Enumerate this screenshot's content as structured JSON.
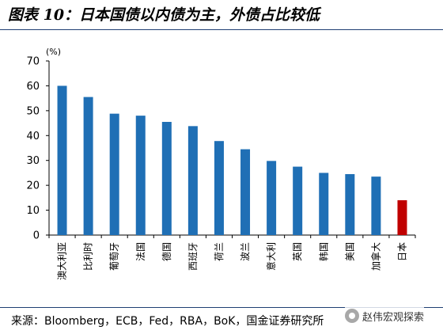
{
  "title": "图表 10：日本国债以内债为主，外债占比较低",
  "source": "来源：Bloomberg，ECB，Fed，RBA，BoK，国金证券研究所",
  "watermark": "赵伟宏观探索",
  "colors": {
    "bar": "#1f6fb5",
    "highlight": "#c00000",
    "axis": "#000000",
    "rule": "#1f3f73"
  },
  "chart_data": {
    "type": "bar",
    "unit_label": "(%)",
    "categories": [
      "澳大利亚",
      "比利时",
      "葡萄牙",
      "法国",
      "德国",
      "西班牙",
      "荷兰",
      "波兰",
      "意大利",
      "英国",
      "韩国",
      "美国",
      "加拿大",
      "日本"
    ],
    "values": [
      60,
      55.5,
      48.8,
      48,
      45.5,
      43.8,
      37.8,
      34.5,
      29.8,
      27.5,
      25,
      24.5,
      23.5,
      14
    ],
    "highlight_category": "日本",
    "yticks": [
      0,
      10,
      20,
      30,
      40,
      50,
      60,
      70
    ],
    "ylim": [
      0,
      70
    ],
    "grid": false,
    "legend": "none"
  }
}
